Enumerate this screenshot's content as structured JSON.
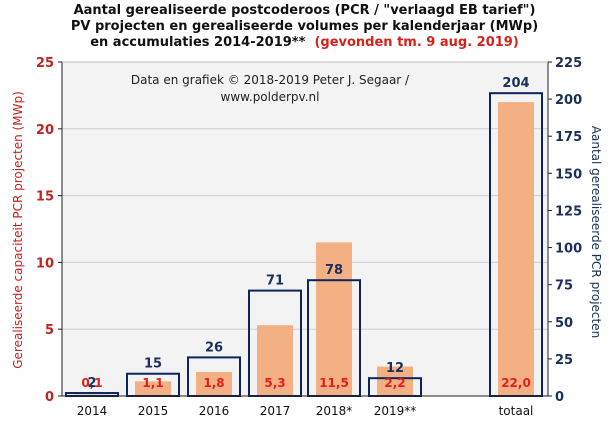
{
  "title": {
    "line1": "Aantal gerealiseerde postcoderoos (PCR / \"verlaagd EB tarief\")",
    "line2": "PV projecten en gerealiseerde volumes per kalenderjaar (MWp)",
    "line3_main": "en accumulaties 2014-2019**",
    "line3_red": "(gevonden tm. 9 aug. 2019)"
  },
  "annotation": {
    "line1": "Data en grafiek © 2018-2019  Peter J. Segaar /",
    "line2": "www.polderpv.nl"
  },
  "colors": {
    "bar_fill": "#f3b083",
    "outline": "#0d2461",
    "mwp_label": "#e0201b",
    "count_label": "#1a2f5a",
    "left_axis_label": "#c0241e",
    "right_axis_label": "#1a2f5a",
    "grid": "#cfcfcf",
    "plot_bg": "#f3f3f3"
  },
  "chart_data": {
    "type": "bar",
    "categories": [
      "2014",
      "2015",
      "2016",
      "2017",
      "2018*",
      "2019**",
      "totaal"
    ],
    "series": [
      {
        "name": "Gerealiseerde capaciteit PCR projecten (MWp)",
        "axis": "left",
        "values": [
          0.1,
          1.1,
          1.8,
          5.3,
          11.5,
          2.2,
          22.0
        ],
        "labels": [
          "0,1",
          "1,1",
          "1,8",
          "5,3",
          "11,5",
          "2,2",
          "22,0"
        ]
      },
      {
        "name": "Aantal gerealiseerde PCR projecten",
        "axis": "right",
        "values": [
          2,
          15,
          26,
          71,
          78,
          12,
          204
        ],
        "labels": [
          "2",
          "15",
          "26",
          "71",
          "78",
          "12",
          "204"
        ]
      }
    ],
    "ylabel_left": "Gerealiseerde  capaciteit PCR projecten (MWp)",
    "ylabel_right": "Aantal gerealiseerde  PCR projecten",
    "ylim_left": [
      0,
      25
    ],
    "yticks_left": [
      "0",
      "5",
      "10",
      "15",
      "20",
      "25"
    ],
    "ylim_right": [
      0,
      225
    ],
    "yticks_right": [
      "0",
      "25",
      "50",
      "75",
      "100",
      "125",
      "150",
      "175",
      "200",
      "225"
    ],
    "grid": true
  }
}
